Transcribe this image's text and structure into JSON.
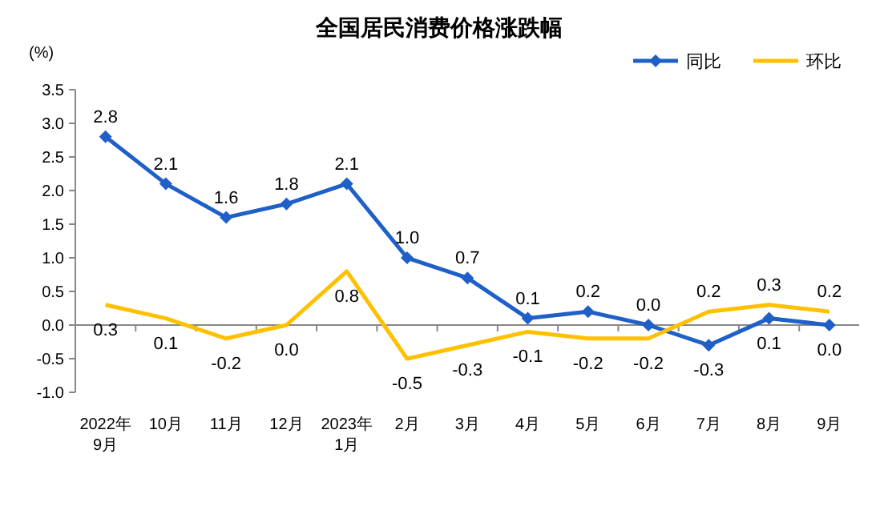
{
  "chart_data": {
    "type": "line",
    "title": "全国居民消费价格涨跌幅",
    "ylabel": "(%)",
    "categories": [
      "2022年\n9月",
      "10月",
      "11月",
      "12月",
      "2023年\n1月",
      "2月",
      "3月",
      "4月",
      "5月",
      "6月",
      "7月",
      "8月",
      "9月"
    ],
    "series": [
      {
        "name": "同比",
        "color": "#1f5fc8",
        "marker": "diamond",
        "values": [
          2.8,
          2.1,
          1.6,
          1.8,
          2.1,
          1.0,
          0.7,
          0.1,
          0.2,
          0.0,
          -0.3,
          0.1,
          0.0
        ],
        "value_labels": [
          "2.8",
          "2.1",
          "1.6",
          "1.8",
          "2.1",
          "1.0",
          "0.7",
          "0.1",
          "0.2",
          "0.0",
          "-0.3",
          "0.1",
          "0.0"
        ]
      },
      {
        "name": "环比",
        "color": "#ffc000",
        "marker": "none",
        "values": [
          0.3,
          0.1,
          -0.2,
          0.0,
          0.8,
          -0.5,
          -0.3,
          -0.1,
          -0.2,
          -0.2,
          0.2,
          0.3,
          0.2
        ],
        "value_labels": [
          "0.3",
          "0.1",
          "-0.2",
          "0.0",
          "0.8",
          "-0.5",
          "-0.3",
          "-0.1",
          "-0.2",
          "-0.2",
          "0.2",
          "0.3",
          "0.2"
        ]
      }
    ],
    "ylim": [
      -1.0,
      3.5
    ],
    "yticks": [
      {
        "value": -1.0,
        "label": "-1.0"
      },
      {
        "value": -0.5,
        "label": "-0.5"
      },
      {
        "value": 0,
        "label": "0.0"
      },
      {
        "value": 0.5,
        "label": "0.5"
      },
      {
        "value": 1.0,
        "label": "1.0"
      },
      {
        "value": 1.5,
        "label": "1.5"
      },
      {
        "value": 2.0,
        "label": "2.0"
      },
      {
        "value": 2.5,
        "label": "2.5"
      },
      {
        "value": 3.0,
        "label": "3.0"
      },
      {
        "value": 3.5,
        "label": "3.5"
      }
    ],
    "legend": "top right",
    "line_style": "solid"
  }
}
